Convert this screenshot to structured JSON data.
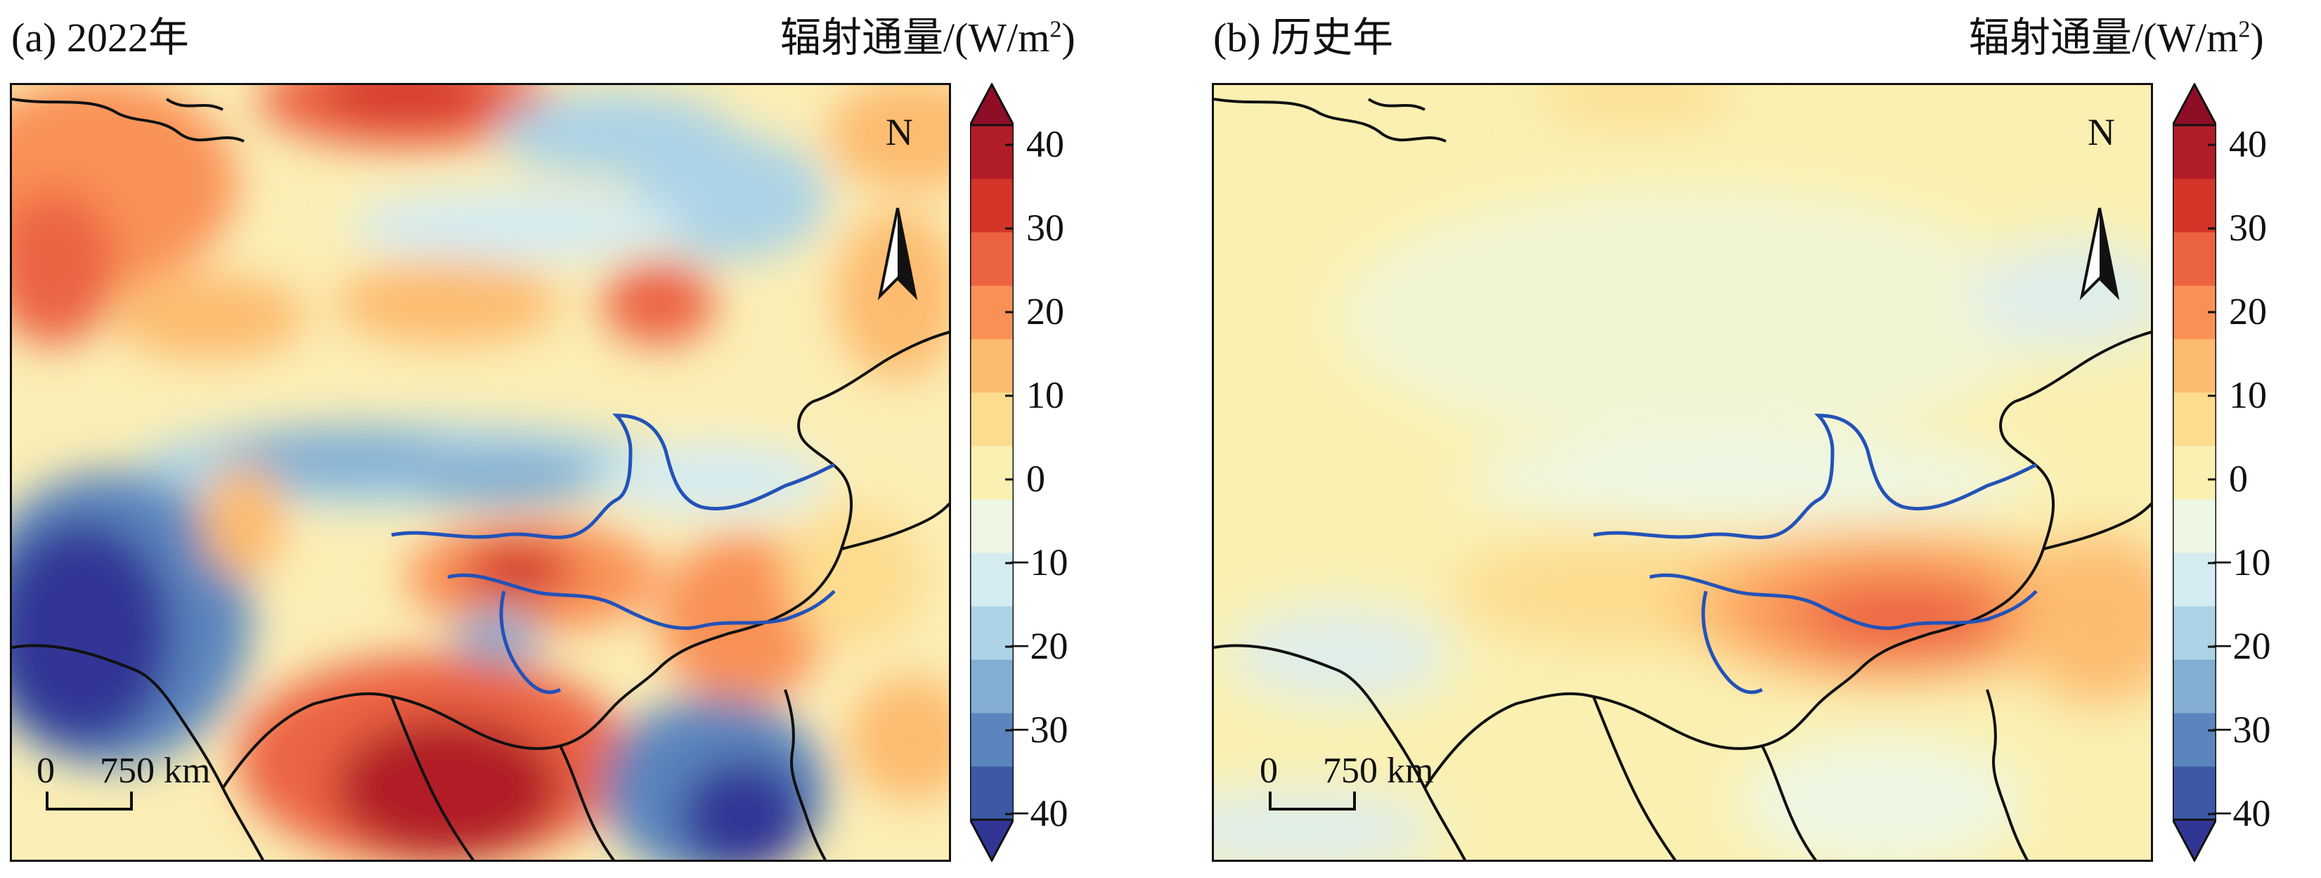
{
  "colorbar": {
    "title": "辐射通量/(W/m",
    "title_sup": "2",
    "title_close": ")",
    "ticks": [
      "40",
      "30",
      "20",
      "10",
      "0",
      "−10",
      "−20",
      "−30",
      "−40"
    ],
    "colors": [
      "#313695",
      "#3d59a6",
      "#5a85be",
      "#82aed1",
      "#acd3e6",
      "#d4ebf2",
      "#eef7e4",
      "#faf0b2",
      "#fddc8f",
      "#fdbb70",
      "#f99157",
      "#ec6342",
      "#d43529",
      "#b11d27",
      "#8e0e26"
    ]
  },
  "panels": [
    {
      "title": "(a) 2022年",
      "north": "N",
      "scale": {
        "zero": "0",
        "distance": "750 km"
      }
    },
    {
      "title": "(b) 历史年",
      "north": "N",
      "scale": {
        "zero": "0",
        "distance": "750 km"
      }
    }
  ],
  "colors": {
    "land_border": "#111111",
    "river": "#2352b8"
  }
}
